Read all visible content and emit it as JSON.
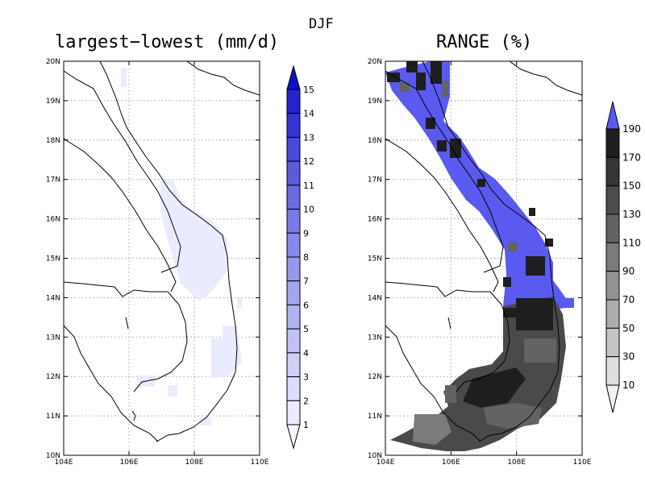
{
  "season": "DJF",
  "left_panel": {
    "title": "largest−lowest (mm/d)",
    "lat_ticks": [
      "20N",
      "19N",
      "18N",
      "17N",
      "16N",
      "15N",
      "14N",
      "13N",
      "12N",
      "11N",
      "10N"
    ],
    "lon_ticks": [
      "104E",
      "106E",
      "108E",
      "110E"
    ],
    "colorbar_labels": [
      "15",
      "14",
      "13",
      "12",
      "11",
      "10",
      "9",
      "8",
      "7",
      "6",
      "5",
      "4",
      "3",
      "2",
      "1"
    ],
    "colorbar_colors": [
      "#f7f7ff",
      "#ebebff",
      "#dcdcfb",
      "#cfcff9",
      "#c1c1f6",
      "#b3b3f3",
      "#a4a4f0",
      "#9696ed",
      "#8888ea",
      "#7a7ae6",
      "#6a6ae2",
      "#5a5ade",
      "#4848da",
      "#3535d5",
      "#2323cf",
      "#1010c6"
    ]
  },
  "right_panel": {
    "title": "RANGE (%)",
    "lat_ticks": [
      "20N",
      "19N",
      "18N",
      "17N",
      "16N",
      "15N",
      "14N",
      "13N",
      "12N",
      "11N",
      "10N"
    ],
    "lon_ticks": [
      "104E",
      "106E",
      "108E",
      "110E"
    ],
    "colorbar_labels": [
      "190",
      "170",
      "150",
      "130",
      "110",
      "90",
      "70",
      "50",
      "30",
      "10"
    ],
    "colorbar_colors": [
      "#f2f2f2",
      "#dedede",
      "#c5c5c5",
      "#acacac",
      "#939393",
      "#7b7b7b",
      "#636363",
      "#4c4c4c",
      "#353535",
      "#1e1e1e",
      "#5a5af0"
    ]
  }
}
